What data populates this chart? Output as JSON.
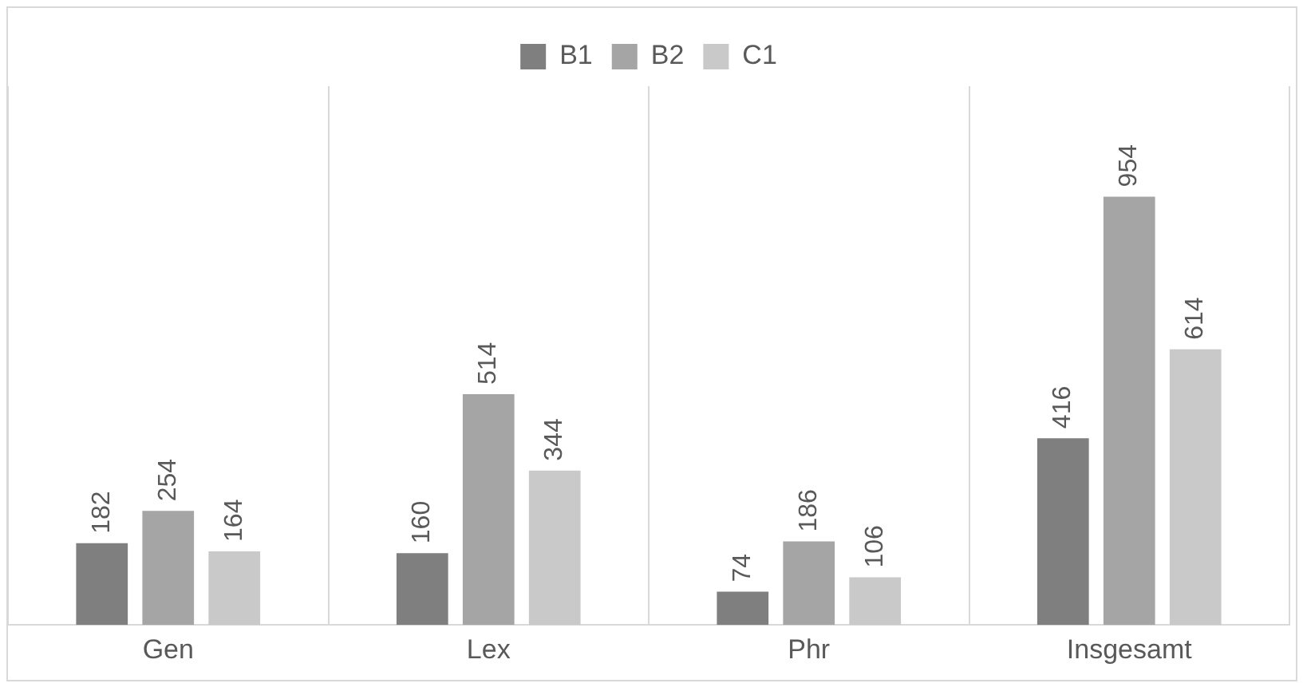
{
  "chart_data": {
    "type": "bar",
    "categories": [
      "Gen",
      "Lex",
      "Phr",
      "Insgesamt"
    ],
    "series": [
      {
        "name": "B1",
        "color": "#7f7f7f",
        "values": [
          182,
          160,
          74,
          416
        ]
      },
      {
        "name": "B2",
        "color": "#a5a5a5",
        "values": [
          254,
          514,
          186,
          954
        ]
      },
      {
        "name": "C1",
        "color": "#c9c9c9",
        "values": [
          164,
          344,
          106,
          614
        ]
      }
    ],
    "data_labels": true,
    "legend": "top",
    "grid": "x",
    "tick_labels": "x"
  }
}
